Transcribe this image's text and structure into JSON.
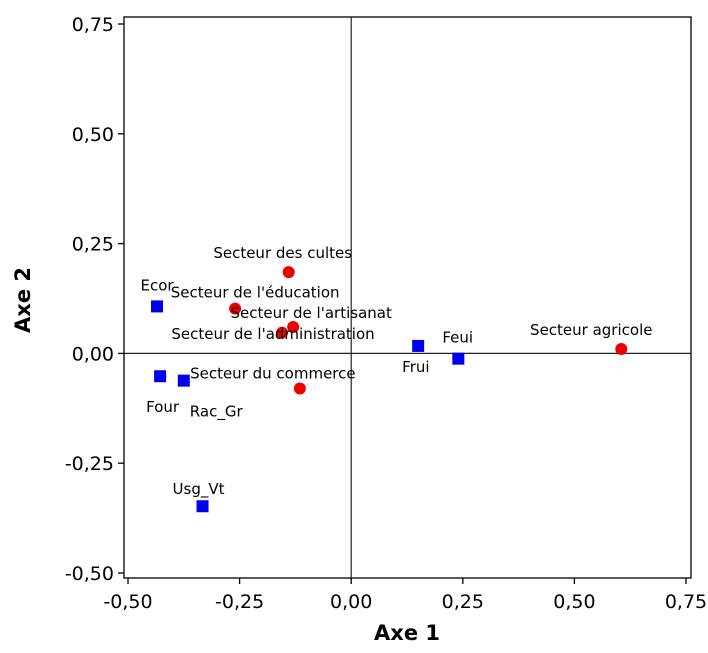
{
  "chart_data": {
    "type": "scatter",
    "xlabel": "Axe 1",
    "ylabel": "Axe 2",
    "xlim": [
      -0.5,
      0.75
    ],
    "ylim": [
      -0.5,
      0.75
    ],
    "x_ticks": [
      "-0,50",
      "-0,25",
      "0,00",
      "0,25",
      "0,50",
      "0,75"
    ],
    "y_ticks": [
      "0,75",
      "0,50",
      "0,25",
      "0,00",
      "-0,25",
      "-0,50"
    ],
    "reference_lines": {
      "x": 0,
      "y": 0
    },
    "grid": false,
    "series": [
      {
        "marker": "circle",
        "color": "#ee0000",
        "points": [
          {
            "label": "Secteur des cultes",
            "x": -0.14,
            "y": 0.185
          },
          {
            "label": "Secteur de l'éducation",
            "x": -0.26,
            "y": 0.102
          },
          {
            "label": "Secteur de l'artisanat",
            "x": -0.13,
            "y": 0.06
          },
          {
            "label": "Secteur de l'administration",
            "x": -0.155,
            "y": 0.047
          },
          {
            "label": "Secteur du commerce",
            "x": -0.115,
            "y": -0.08
          },
          {
            "label": "Secteur agricole",
            "x": 0.605,
            "y": 0.01
          }
        ]
      },
      {
        "marker": "square",
        "color": "#0000ee",
        "points": [
          {
            "label": "Ecor",
            "x": -0.435,
            "y": 0.107
          },
          {
            "label": "Four",
            "x": -0.428,
            "y": -0.052
          },
          {
            "label": "Rac_Gr",
            "x": -0.375,
            "y": -0.062
          },
          {
            "label": "Usg_Vt",
            "x": -0.333,
            "y": -0.348
          },
          {
            "label": "Frui",
            "x": 0.15,
            "y": 0.017
          },
          {
            "label": "Feui",
            "x": 0.24,
            "y": -0.012
          }
        ]
      }
    ]
  }
}
